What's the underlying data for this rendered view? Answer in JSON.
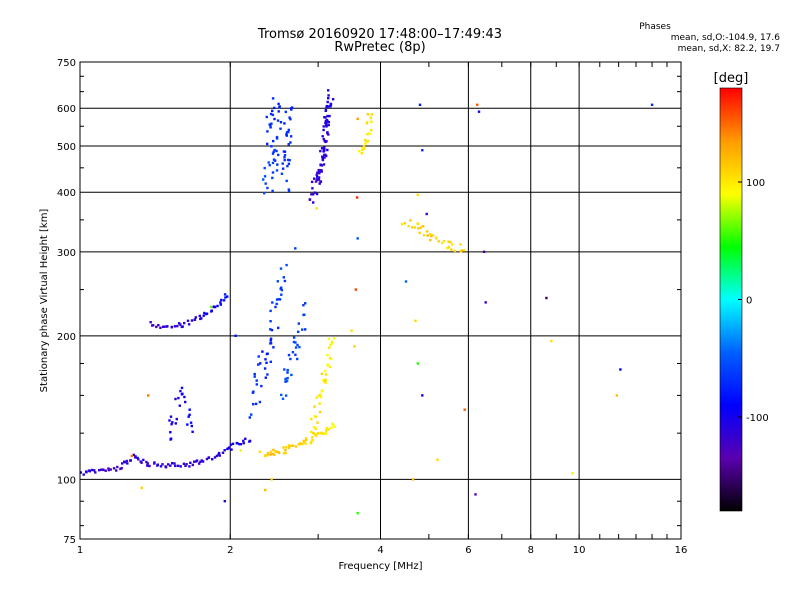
{
  "title_line1": "Tromsø 20160920 17:48:00–17:49:43",
  "title_line2": "RwPretec (8p)",
  "phases": {
    "heading": "Phases",
    "line_o": "mean, sd,O:-104.9, 17.6",
    "line_x": "mean, sd,X:  82.2, 19.7"
  },
  "colorbar": {
    "label": "[deg]",
    "ticks": [
      "100",
      "0",
      "-100"
    ],
    "range": [
      -180,
      180
    ],
    "colors": [
      "#ff0000",
      "#ff9a00",
      "#ffff00",
      "#00ff00",
      "#00ffff",
      "#0060ff",
      "#0000ff",
      "#5a00b0",
      "#000000"
    ]
  },
  "chart_data": {
    "type": "scatter",
    "title": "Tromsø 20160920 17:48:00–17:49:43",
    "subtitle": "RwPretec (8p)",
    "xlabel": "Frequency [MHz]",
    "ylabel": "Stationary phase Virtual Height [km]",
    "xscale": "log",
    "yscale": "log",
    "xlim": [
      1,
      16
    ],
    "ylim": [
      75,
      750
    ],
    "x_ticks": [
      1,
      2,
      4,
      6,
      8,
      10,
      16
    ],
    "x_tick_labels": [
      "1",
      "2",
      "4",
      "6",
      "8",
      "10",
      "16"
    ],
    "y_ticks": [
      75,
      100,
      200,
      300,
      400,
      500,
      600,
      750
    ],
    "y_tick_labels": [
      "75",
      "100",
      "200",
      "300",
      "400",
      "500",
      "600",
      "750"
    ],
    "grid": true,
    "color_by": "phase [deg]",
    "series": [
      {
        "polyline": [
          [
            1.0,
            103,
            -115
          ],
          [
            1.1,
            104,
            -118
          ],
          [
            1.2,
            106,
            -125
          ],
          [
            1.28,
            112,
            -115
          ],
          [
            1.35,
            108,
            -120
          ],
          [
            1.45,
            107,
            -118
          ],
          [
            1.6,
            107,
            -120
          ],
          [
            1.75,
            109,
            -118
          ],
          [
            1.9,
            113,
            -115
          ],
          [
            2.05,
            118,
            -110
          ],
          [
            2.2,
            122,
            -108
          ]
        ],
        "n": 95,
        "jitter": [
          0.006,
          0.012
        ]
      },
      {
        "polyline": [
          [
            1.38,
            212,
            -125
          ],
          [
            1.5,
            209,
            -120
          ],
          [
            1.62,
            211,
            -118
          ],
          [
            1.75,
            218,
            -112
          ],
          [
            1.87,
            230,
            -108
          ],
          [
            1.98,
            244,
            -100
          ]
        ],
        "n": 45,
        "jitter": [
          0.006,
          0.012
        ]
      },
      {
        "polyline": [
          [
            2.38,
            400,
            -80
          ],
          [
            2.43,
            480,
            -85
          ],
          [
            2.45,
            560,
            -90
          ],
          [
            2.5,
            630,
            -95
          ]
        ],
        "n": 45,
        "jitter": [
          0.035,
          0.05
        ]
      },
      {
        "polyline": [
          [
            2.58,
            420,
            -82
          ],
          [
            2.6,
            520,
            -88
          ],
          [
            2.63,
            600,
            -92
          ]
        ],
        "n": 30,
        "jitter": [
          0.02,
          0.05
        ]
      },
      {
        "polyline": [
          [
            2.9,
            390,
            -118
          ],
          [
            3.0,
            420,
            -120
          ],
          [
            3.08,
            480,
            -118
          ],
          [
            3.12,
            560,
            -115
          ],
          [
            3.17,
            640,
            -112
          ]
        ],
        "n": 85,
        "jitter": [
          0.015,
          0.04
        ]
      },
      {
        "polyline": [
          [
            3.65,
            470,
            105
          ],
          [
            3.75,
            520,
            108
          ],
          [
            3.85,
            600,
            110
          ]
        ],
        "n": 20,
        "jitter": [
          0.01,
          0.035
        ]
      },
      {
        "polyline": [
          [
            2.3,
            113,
            115
          ],
          [
            2.5,
            114,
            118
          ],
          [
            2.7,
            117,
            115
          ],
          [
            2.9,
            121,
            110
          ],
          [
            3.1,
            126,
            105
          ],
          [
            3.25,
            130,
            102
          ]
        ],
        "n": 55,
        "jitter": [
          0.01,
          0.015
        ]
      },
      {
        "polyline": [
          [
            2.9,
            125,
            110
          ],
          [
            3.05,
            150,
            108
          ],
          [
            3.15,
            180,
            103
          ],
          [
            3.22,
            200,
            100
          ]
        ],
        "n": 40,
        "jitter": [
          0.012,
          0.05
        ]
      },
      {
        "polyline": [
          [
            2.2,
            140,
            -85
          ],
          [
            2.3,
            165,
            -90
          ],
          [
            2.38,
            190,
            -95
          ],
          [
            2.45,
            220,
            -88
          ],
          [
            2.55,
            270,
            -80
          ]
        ],
        "n": 50,
        "jitter": [
          0.025,
          0.06
        ]
      },
      {
        "polyline": [
          [
            2.55,
            150,
            -75
          ],
          [
            2.65,
            180,
            -80
          ],
          [
            2.75,
            210,
            -85
          ],
          [
            2.82,
            230,
            -82
          ]
        ],
        "n": 30,
        "jitter": [
          0.02,
          0.05
        ]
      },
      {
        "polyline": [
          [
            1.5,
            125,
            -108
          ],
          [
            1.6,
            150,
            -112
          ],
          [
            1.68,
            130,
            -105
          ]
        ],
        "n": 25,
        "jitter": [
          0.015,
          0.06
        ]
      },
      {
        "polyline": [
          [
            4.45,
            350,
            108
          ],
          [
            4.7,
            340,
            112
          ],
          [
            5.0,
            325,
            115
          ],
          [
            5.4,
            310,
            108
          ],
          [
            5.9,
            305,
            112
          ]
        ],
        "n": 35,
        "jitter": [
          0.012,
          0.02
        ]
      }
    ],
    "scattered_points": [
      [
        1.27,
        112,
        140
      ],
      [
        1.33,
        96,
        115
      ],
      [
        1.95,
        90,
        -120
      ],
      [
        2.1,
        115,
        105
      ],
      [
        2.35,
        95,
        120
      ],
      [
        3.5,
        205,
        110
      ],
      [
        3.55,
        190,
        115
      ],
      [
        3.6,
        85,
        40
      ],
      [
        3.57,
        250,
        160
      ],
      [
        3.59,
        390,
        170
      ],
      [
        3.6,
        320,
        -75
      ],
      [
        4.65,
        100,
        120
      ],
      [
        4.5,
        260,
        -70
      ],
      [
        4.85,
        150,
        -110
      ],
      [
        5.2,
        110,
        110
      ],
      [
        5.9,
        140,
        150
      ],
      [
        6.2,
        93,
        -130
      ],
      [
        6.3,
        590,
        -110
      ],
      [
        6.45,
        300,
        -140
      ],
      [
        6.5,
        235,
        -120
      ],
      [
        8.6,
        240,
        -150
      ],
      [
        8.8,
        195,
        110
      ],
      [
        9.7,
        103,
        105
      ],
      [
        11.9,
        150,
        120
      ],
      [
        12.1,
        170,
        -105
      ],
      [
        14.0,
        610,
        -90
      ],
      [
        4.8,
        610,
        -95
      ],
      [
        4.85,
        490,
        -90
      ],
      [
        4.75,
        395,
        110
      ],
      [
        4.95,
        360,
        -120
      ],
      [
        4.7,
        215,
        112
      ],
      [
        4.75,
        175,
        40
      ],
      [
        3.6,
        570,
        130
      ],
      [
        1.37,
        150,
        140
      ],
      [
        2.42,
        100,
        115
      ],
      [
        2.05,
        200,
        -100
      ],
      [
        1.83,
        230,
        60
      ],
      [
        2.7,
        305,
        -85
      ],
      [
        2.98,
        370,
        110
      ],
      [
        6.25,
        610,
        150
      ]
    ]
  }
}
